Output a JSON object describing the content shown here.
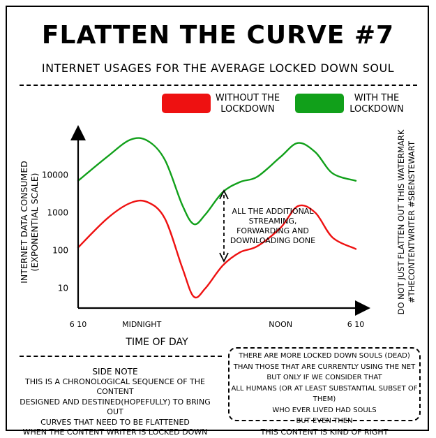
{
  "header": {
    "title": "FLATTEN THE CURVE #7",
    "subtitle": "INTERNET USAGES FOR THE AVERAGE LOCKED DOWN SOUL"
  },
  "legend": [
    {
      "label_line1": "WITHOUT THE",
      "label_line2": "LOCKDOWN",
      "color": "#ee1111"
    },
    {
      "label_line1": "WITH THE",
      "label_line2": "LOCKDOWN",
      "color": "#11a01a"
    }
  ],
  "watermark": {
    "line1": "DO NOT JUST FLATTEN OUT THIS WATERMARK",
    "line2": "#THECONTENTWRITER #SBENSTEWART"
  },
  "chart_data": {
    "type": "line",
    "title": "FLATTEN THE CURVE #7",
    "subtitle": "INTERNET USAGES FOR THE AVERAGE LOCKED DOWN SOUL",
    "xlabel": "TIME OF DAY",
    "ylabel_line1": "INTERNET DATA CONSUMED",
    "ylabel_line2": "(EXPONENTIAL SCALE)",
    "y_scale": "log",
    "ylim": [
      3,
      200000
    ],
    "yticks": [
      10,
      100,
      1000,
      10000
    ],
    "ytick_labels": [
      "10",
      "100",
      "1000",
      "10000"
    ],
    "xlim": [
      6.5,
      30.5
    ],
    "xticks": [
      {
        "x": 6.5,
        "label": "6 10"
      },
      {
        "x": 12,
        "label": "MIDNIGHT"
      },
      {
        "x": 24,
        "label": "NOON"
      },
      {
        "x": 30.5,
        "label": "6 10"
      }
    ],
    "series": [
      {
        "name": "WITHOUT THE LOCKDOWN",
        "color": "#ee1111",
        "x": [
          6.5,
          9,
          11,
          12.5,
          14,
          15.5,
          16.5,
          17.5,
          19,
          20.5,
          22,
          24,
          25.5,
          27,
          28.5,
          30.5
        ],
        "y": [
          120,
          700,
          1800,
          1900,
          700,
          35,
          6,
          10,
          40,
          90,
          130,
          400,
          1500,
          1000,
          220,
          110
        ]
      },
      {
        "name": "WITH THE LOCKDOWN",
        "color": "#11a01a",
        "x": [
          6.5,
          9,
          11,
          12.5,
          14,
          15.5,
          16.5,
          17.5,
          19,
          20.5,
          22,
          24,
          25.5,
          27,
          28.5,
          30.5
        ],
        "y": [
          7000,
          30000,
          85000,
          80000,
          25000,
          1600,
          500,
          900,
          3500,
          6500,
          9000,
          30000,
          70000,
          40000,
          11000,
          7000
        ]
      }
    ],
    "annotation": {
      "line1": "ALL THE ADDITIONAL",
      "line2": "STREAMING,",
      "line3": "FORWARDING AND",
      "line4": "DOWNLOADING DONE"
    },
    "grid": false,
    "legend_position": "top-right"
  },
  "side_note": {
    "heading": "SIDE NOTE",
    "line1": "THIS IS A CHRONOLOGICAL SEQUENCE OF THE CONTENT",
    "line2": "DESIGNED AND DESTINED(HOPEFULLY) TO BRING OUT",
    "line3": "CURVES THAT NEED TO BE FLATTENED",
    "line4": "WHEN THE CONTENT WRITER IS LOCKED DOWN"
  },
  "disclaimer": {
    "line1": "THERE ARE MORE LOCKED DOWN SOULS (DEAD)",
    "line2": "THAN THOSE THAT ARE CURRENTLY USING THE NET",
    "line3": "BUT ONLY IF WE CONSIDER THAT",
    "line4": "ALL HUMANS (OR AT LEAST SUBSTANTIAL SUBSET OF THEM)",
    "line5": "WHO EVER LIVED HAD SOULS",
    "line6": "BUT EVEN THEN",
    "line7": "THIS CONTENT IS KIND OF RIGHT"
  }
}
